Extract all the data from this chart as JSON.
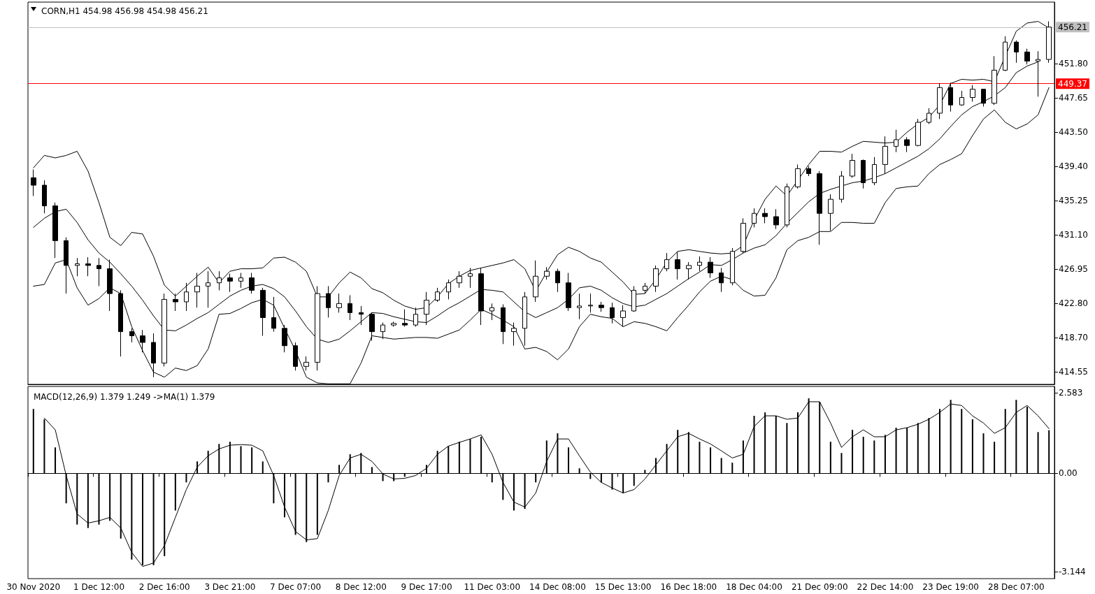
{
  "chart_data": [
    {
      "type": "candlestick",
      "title": "CORN,H1 454.98 456.98 454.98 456.21",
      "tick_labels": "y",
      "marker": "none",
      "categories": [
        null,
        null,
        null,
        null,
        null,
        null,
        null,
        null,
        null,
        null,
        null,
        null,
        null,
        null,
        null,
        null,
        null,
        null,
        null,
        null,
        null,
        null,
        null,
        null,
        null,
        null,
        null,
        null,
        null,
        null,
        null,
        null,
        null,
        null,
        null,
        null,
        null,
        null,
        null,
        null,
        null,
        null,
        null,
        null,
        null,
        null,
        null,
        null,
        null,
        null,
        null,
        null,
        null,
        null,
        null,
        null,
        null,
        null,
        null,
        null,
        null,
        null,
        null,
        null,
        null,
        null,
        null,
        null,
        null,
        null,
        null,
        null,
        null,
        null,
        null,
        null,
        null,
        null,
        null,
        null,
        null,
        null,
        null,
        null,
        null,
        null,
        null,
        null,
        null,
        null,
        null,
        null,
        null,
        null
      ],
      "ylim": [
        413.03,
        459.23
      ],
      "yticks": [
        {
          "value": 414.55,
          "label": "414.55"
        },
        {
          "value": 418.7,
          "label": "418.70"
        },
        {
          "value": 422.8,
          "label": "422.80"
        },
        {
          "value": 426.95,
          "label": "426.95"
        },
        {
          "value": 431.1,
          "label": "431.10"
        },
        {
          "value": 435.25,
          "label": "435.25"
        },
        {
          "value": 439.4,
          "label": "439.40"
        },
        {
          "value": 443.5,
          "label": "443.50"
        },
        {
          "value": 447.65,
          "label": "447.65"
        },
        {
          "value": 451.8,
          "label": "451.80"
        }
      ],
      "ohlc": [
        [
          438.0,
          439.0,
          435.8,
          437.1
        ],
        [
          437.1,
          437.7,
          433.7,
          434.6
        ],
        [
          434.6,
          435.0,
          428.3,
          430.4
        ],
        [
          430.4,
          430.8,
          424.0,
          427.4
        ],
        [
          427.4,
          428.3,
          426.1,
          427.6
        ],
        [
          427.6,
          428.4,
          426.1,
          427.4
        ],
        [
          427.4,
          428.3,
          424.9,
          427.0
        ],
        [
          427.0,
          428.1,
          421.9,
          424.0
        ],
        [
          424.0,
          424.4,
          416.4,
          419.4
        ],
        [
          419.4,
          419.8,
          418.1,
          418.9
        ],
        [
          418.9,
          419.6,
          416.9,
          418.1
        ],
        [
          418.1,
          419.2,
          413.9,
          415.6
        ],
        [
          415.6,
          424.0,
          415.2,
          423.3
        ],
        [
          423.3,
          424.0,
          421.9,
          423.0
        ],
        [
          423.0,
          425.3,
          421.9,
          424.2
        ],
        [
          424.2,
          426.5,
          422.3,
          424.9
        ],
        [
          424.9,
          426.7,
          422.3,
          425.3
        ],
        [
          425.3,
          426.7,
          424.4,
          425.9
        ],
        [
          425.9,
          426.4,
          424.2,
          425.5
        ],
        [
          425.5,
          426.5,
          424.7,
          425.9
        ],
        [
          425.9,
          426.5,
          424.0,
          424.4
        ],
        [
          424.4,
          424.7,
          418.9,
          421.1
        ],
        [
          421.1,
          423.6,
          419.4,
          419.8
        ],
        [
          419.8,
          420.2,
          416.9,
          417.7
        ],
        [
          417.7,
          418.1,
          414.7,
          415.2
        ],
        [
          415.2,
          416.4,
          414.7,
          415.7
        ],
        [
          415.7,
          424.9,
          414.7,
          424.0
        ],
        [
          424.0,
          424.9,
          421.1,
          422.3
        ],
        [
          422.3,
          424.0,
          421.7,
          422.8
        ],
        [
          422.8,
          423.8,
          420.8,
          421.7
        ],
        [
          421.7,
          422.5,
          420.2,
          421.5
        ],
        [
          421.5,
          421.7,
          418.3,
          419.4
        ],
        [
          419.4,
          420.5,
          418.5,
          420.2
        ],
        [
          420.2,
          420.6,
          420.0,
          420.4
        ],
        [
          420.4,
          422.1,
          420.0,
          420.2
        ],
        [
          420.2,
          422.3,
          420.0,
          421.5
        ],
        [
          421.5,
          424.2,
          420.2,
          423.2
        ],
        [
          423.2,
          424.7,
          423.0,
          424.2
        ],
        [
          424.2,
          425.7,
          423.3,
          425.3
        ],
        [
          425.3,
          426.7,
          424.7,
          426.1
        ],
        [
          426.1,
          427.1,
          424.7,
          426.4
        ],
        [
          426.4,
          427.1,
          420.2,
          421.9
        ],
        [
          421.9,
          422.8,
          420.8,
          422.3
        ],
        [
          422.3,
          422.7,
          417.9,
          419.4
        ],
        [
          419.4,
          420.5,
          417.7,
          419.8
        ],
        [
          419.8,
          424.2,
          417.7,
          423.6
        ],
        [
          423.6,
          428.0,
          423.0,
          426.1
        ],
        [
          426.1,
          427.2,
          425.7,
          426.7
        ],
        [
          426.7,
          427.0,
          424.2,
          425.3
        ],
        [
          425.3,
          426.5,
          421.9,
          422.3
        ],
        [
          422.3,
          424.0,
          420.9,
          422.5
        ],
        [
          422.5,
          424.0,
          421.7,
          422.6
        ],
        [
          422.6,
          423.0,
          421.8,
          422.3
        ],
        [
          422.3,
          422.9,
          420.4,
          421.1
        ],
        [
          421.1,
          422.6,
          420.0,
          421.9
        ],
        [
          421.9,
          424.9,
          421.8,
          424.4
        ],
        [
          424.4,
          425.3,
          424.0,
          424.9
        ],
        [
          424.9,
          427.4,
          424.2,
          427.0
        ],
        [
          427.0,
          428.9,
          426.7,
          428.1
        ],
        [
          428.1,
          429.1,
          425.7,
          427.0
        ],
        [
          427.0,
          427.8,
          425.7,
          427.4
        ],
        [
          427.4,
          428.5,
          426.7,
          427.8
        ],
        [
          427.8,
          428.4,
          425.9,
          426.5
        ],
        [
          426.5,
          427.1,
          424.2,
          425.3
        ],
        [
          425.3,
          429.5,
          425.0,
          429.1
        ],
        [
          429.1,
          433.1,
          428.9,
          432.5
        ],
        [
          432.5,
          434.3,
          432.0,
          433.7
        ],
        [
          433.7,
          434.3,
          432.5,
          433.3
        ],
        [
          433.3,
          434.2,
          431.8,
          432.3
        ],
        [
          432.3,
          437.3,
          432.0,
          436.9
        ],
        [
          436.9,
          439.6,
          436.7,
          439.1
        ],
        [
          439.1,
          439.4,
          438.2,
          438.5
        ],
        [
          438.5,
          438.8,
          429.9,
          433.7
        ],
        [
          433.7,
          436.0,
          431.6,
          435.4
        ],
        [
          435.4,
          438.8,
          435.0,
          438.2
        ],
        [
          438.2,
          440.9,
          438.0,
          440.1
        ],
        [
          440.1,
          440.2,
          436.7,
          437.4
        ],
        [
          437.4,
          440.5,
          437.1,
          439.6
        ],
        [
          439.6,
          443.0,
          438.5,
          441.8
        ],
        [
          441.8,
          443.8,
          441.1,
          442.6
        ],
        [
          442.6,
          442.9,
          441.1,
          441.9
        ],
        [
          441.9,
          445.1,
          441.8,
          444.7
        ],
        [
          444.7,
          446.4,
          444.5,
          445.8
        ],
        [
          445.8,
          449.4,
          445.1,
          448.9
        ],
        [
          448.9,
          449.5,
          446.0,
          446.8
        ],
        [
          446.8,
          448.5,
          446.7,
          447.7
        ],
        [
          447.7,
          449.2,
          447.2,
          448.7
        ],
        [
          448.7,
          448.7,
          446.6,
          447.0
        ],
        [
          447.0,
          452.7,
          446.8,
          451.0
        ],
        [
          451.0,
          455.1,
          450.9,
          454.4
        ],
        [
          454.4,
          454.6,
          451.9,
          453.2
        ],
        [
          453.2,
          453.6,
          451.7,
          452.1
        ],
        [
          452.1,
          453.3,
          447.8,
          452.3
        ],
        [
          452.3,
          456.9,
          451.9,
          456.21
        ]
      ],
      "series": [
        {
          "type": "line",
          "color": "#000000",
          "values": [
            439.2,
            440.7,
            440.4,
            440.7,
            441.2,
            438.8,
            435.0,
            430.8,
            429.8,
            431.4,
            431.2,
            428.5,
            425.0,
            423.7,
            424.9,
            426.1,
            427.2,
            425.3,
            426.7,
            427.0,
            427.0,
            427.1,
            428.3,
            428.4,
            427.8,
            426.7,
            423.6,
            423.6,
            425.3,
            426.6,
            425.9,
            424.6,
            424.1,
            423.2,
            422.5,
            422.1,
            422.3,
            423.6,
            425.2,
            426.1,
            426.8,
            427.1,
            427.4,
            427.7,
            428.1,
            427.0,
            424.3,
            426.6,
            428.7,
            429.6,
            429.1,
            428.3,
            427.8,
            426.6,
            425.4,
            423.9,
            424.0,
            425.7,
            427.8,
            429.1,
            429.3,
            429.1,
            428.9,
            428.8,
            428.9,
            429.8,
            432.9,
            435.4,
            437.0,
            435.8,
            437.7,
            439.6,
            441.2,
            441.2,
            441.1,
            441.8,
            442.4,
            442.3,
            442.2,
            442.3,
            443.5,
            444.5,
            445.3,
            446.8,
            449.4,
            449.9,
            449.8,
            449.9,
            449.6,
            452.7,
            455.7,
            456.7,
            456.9,
            456.1
          ]
        },
        {
          "type": "line",
          "color": "#000000",
          "values": [
            432.0,
            433.1,
            433.9,
            434.2,
            432.6,
            430.5,
            428.9,
            427.8,
            426.4,
            424.9,
            423.2,
            421.3,
            419.6,
            419.5,
            420.2,
            421.0,
            421.7,
            422.7,
            423.7,
            424.4,
            424.9,
            425.1,
            424.6,
            423.6,
            421.9,
            420.0,
            418.5,
            418.1,
            418.5,
            419.5,
            420.6,
            421.7,
            421.6,
            421.2,
            420.9,
            420.6,
            420.5,
            421.3,
            422.2,
            422.9,
            423.7,
            424.5,
            424.4,
            424.2,
            423.0,
            421.8,
            421.1,
            421.7,
            422.3,
            423.3,
            424.7,
            424.9,
            424.4,
            423.5,
            422.8,
            422.4,
            422.6,
            423.3,
            424.0,
            424.9,
            425.8,
            426.6,
            427.5,
            427.4,
            428.1,
            428.9,
            429.5,
            429.9,
            431.0,
            432.5,
            433.8,
            435.1,
            436.1,
            436.6,
            437.0,
            437.4,
            437.6,
            438.0,
            438.5,
            439.2,
            439.9,
            440.6,
            441.5,
            442.7,
            444.2,
            445.6,
            446.6,
            447.2,
            447.9,
            448.9,
            450.7,
            451.5,
            452.0,
            null
          ]
        },
        {
          "type": "line",
          "color": "#000000",
          "values": [
            424.9,
            425.1,
            427.7,
            428.1,
            424.7,
            422.6,
            423.4,
            424.7,
            424.0,
            420.0,
            417.1,
            414.5,
            413.9,
            415.0,
            414.7,
            415.3,
            417.3,
            421.5,
            421.6,
            422.2,
            422.9,
            423.3,
            422.6,
            419.8,
            417.1,
            413.9,
            413.2,
            413.1,
            413.1,
            413.1,
            415.6,
            418.9,
            418.7,
            418.5,
            418.6,
            418.7,
            418.7,
            418.6,
            419.1,
            419.6,
            420.8,
            422.1,
            421.5,
            420.8,
            420.0,
            417.3,
            417.5,
            417.0,
            416.0,
            417.3,
            420.0,
            421.5,
            421.2,
            421.0,
            420.0,
            420.6,
            420.4,
            420.0,
            419.5,
            421.1,
            422.6,
            424.2,
            425.5,
            426.1,
            425.7,
            424.4,
            423.7,
            423.8,
            425.9,
            429.3,
            430.4,
            430.8,
            431.5,
            431.5,
            432.6,
            432.6,
            432.5,
            432.5,
            435.0,
            436.7,
            436.9,
            437.0,
            438.5,
            439.6,
            440.2,
            440.9,
            443.1,
            445.1,
            446.2,
            444.7,
            443.9,
            444.5,
            445.6,
            448.9
          ]
        }
      ],
      "ref_lines": [
        {
          "axis": "y",
          "value": 449.37,
          "label": "449.37",
          "color": "#ff0000"
        },
        {
          "axis": "y",
          "value": 456.21,
          "label": "456.21",
          "color": "#c0c0c0"
        }
      ]
    },
    {
      "type": "bar",
      "title": "MACD(12,26,9) 1.379 1.249 ->MA(1) 1.379",
      "marker": "none",
      "categories": [
        "30 Nov 2020",
        null,
        null,
        null,
        null,
        null,
        "1 Dec 12:00",
        null,
        null,
        null,
        null,
        null,
        "2 Dec 16:00",
        null,
        null,
        null,
        null,
        null,
        "3 Dec 21:00",
        null,
        null,
        null,
        null,
        null,
        "7 Dec 07:00",
        null,
        null,
        null,
        null,
        null,
        "8 Dec 12:00",
        null,
        null,
        null,
        null,
        null,
        "9 Dec 17:00",
        null,
        null,
        null,
        null,
        null,
        "11 Dec 03:00",
        null,
        null,
        null,
        null,
        null,
        "14 Dec 08:00",
        null,
        null,
        null,
        null,
        null,
        "15 Dec 13:00",
        null,
        null,
        null,
        null,
        null,
        "16 Dec 18:00",
        null,
        null,
        null,
        null,
        null,
        "18 Dec 04:00",
        null,
        null,
        null,
        null,
        null,
        "21 Dec 09:00",
        null,
        null,
        null,
        null,
        null,
        "22 Dec 14:00",
        null,
        null,
        null,
        null,
        null,
        "23 Dec 19:00",
        null,
        null,
        null,
        null,
        null,
        "28 Dec 07:00",
        null,
        null,
        null
      ],
      "ylim": [
        -3.37,
        2.78
      ],
      "yticks": [
        {
          "value": 2.583,
          "label": "2.583"
        },
        {
          "value": 0,
          "label": "0.00"
        },
        {
          "value": -3.144,
          "label": "-3.144"
        }
      ],
      "series": [
        {
          "type": "bar",
          "color": "#000000",
          "values": [
            2.06,
            1.73,
            0.83,
            -0.96,
            -1.64,
            -1.75,
            -1.64,
            -1.52,
            -2.09,
            -2.76,
            -2.94,
            -2.94,
            -2.65,
            -1.19,
            -0.29,
            0.38,
            0.72,
            0.94,
            1.01,
            0.87,
            0.83,
            0.38,
            -0.96,
            -1.41,
            -1.97,
            -2.2,
            -1.97,
            -0.29,
            0.27,
            0.61,
            0.65,
            0.2,
            -0.25,
            -0.25,
            -0.11,
            -0.02,
            0.27,
            0.72,
            0.87,
            1.01,
            1.1,
            1.17,
            -0.29,
            -0.85,
            -1.19,
            -1.14,
            -0.29,
            1.05,
            1.28,
            0.83,
            0.16,
            -0.18,
            -0.29,
            -0.52,
            -0.63,
            -0.4,
            0.11,
            0.49,
            0.94,
            1.39,
            1.32,
            1.01,
            0.83,
            0.49,
            0.34,
            1.05,
            1.84,
            1.95,
            1.84,
            1.61,
            1.95,
            2.4,
            2.29,
            1.01,
            0.65,
            1.39,
            1.17,
            1.05,
            1.23,
            1.46,
            1.46,
            1.61,
            1.77,
            2.06,
            2.35,
            2.06,
            1.73,
            1.28,
            1.01,
            2.06,
            2.35,
            2.13,
            1.32,
            1.38
          ]
        },
        {
          "type": "line",
          "color": "#000000",
          "values": [
            null,
            1.77,
            1.39,
            -0.07,
            -1.3,
            -1.59,
            -1.52,
            -1.41,
            -1.75,
            -2.53,
            -2.98,
            -2.87,
            -2.31,
            -1.41,
            -0.52,
            0.2,
            0.56,
            0.78,
            0.9,
            0.92,
            0.9,
            0.72,
            -0.07,
            -1.08,
            -1.86,
            -2.13,
            -2.09,
            -1.19,
            -0.07,
            0.49,
            0.61,
            0.38,
            -0.02,
            -0.18,
            -0.16,
            -0.07,
            0.16,
            0.61,
            0.87,
            0.99,
            1.1,
            1.23,
            0.61,
            -0.29,
            -0.92,
            -1.08,
            -0.63,
            0.38,
            1.1,
            1.1,
            0.56,
            0.04,
            -0.29,
            -0.47,
            -0.63,
            -0.52,
            -0.18,
            0.27,
            0.72,
            1.17,
            1.28,
            1.1,
            0.94,
            0.72,
            0.49,
            0.61,
            1.5,
            1.84,
            1.84,
            1.73,
            1.77,
            2.29,
            2.29,
            1.61,
            0.83,
            1.17,
            1.39,
            1.17,
            1.17,
            1.39,
            1.46,
            1.57,
            1.73,
            1.95,
            2.22,
            2.17,
            1.84,
            1.61,
            1.28,
            1.46,
            1.95,
            2.17,
            1.84,
            1.43
          ]
        }
      ]
    }
  ]
}
